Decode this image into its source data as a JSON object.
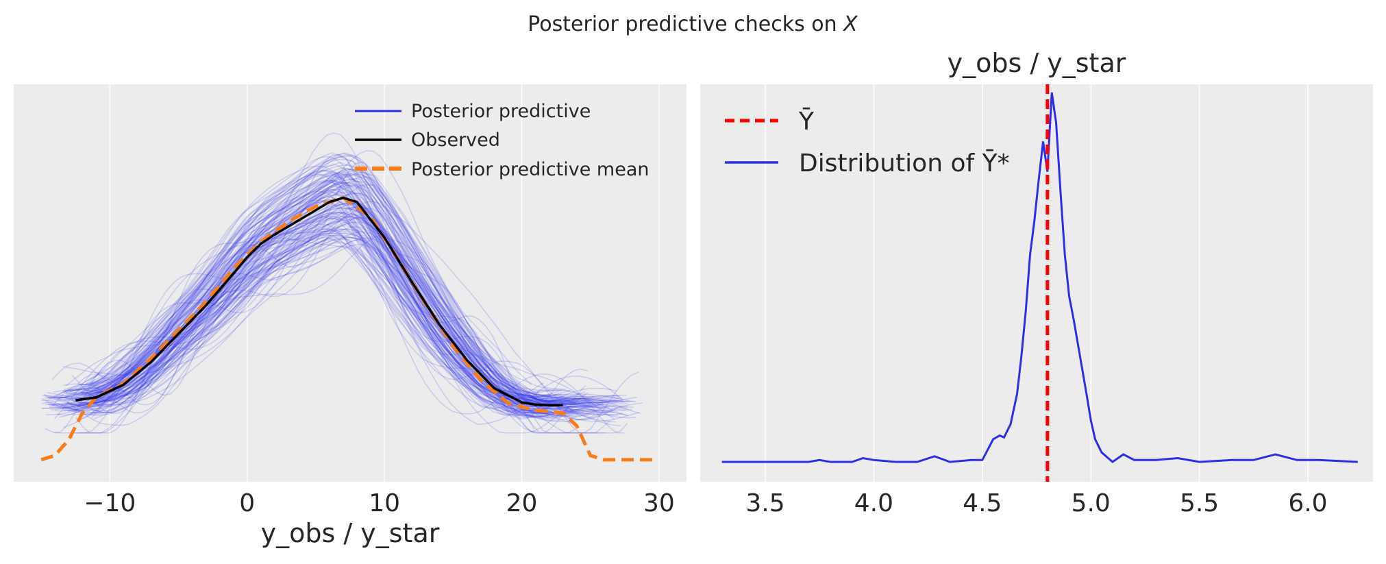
{
  "figure": {
    "suptitle_prefix": "Posterior predictive checks on ",
    "suptitle_var": "X"
  },
  "colors": {
    "background": "#ececec",
    "grid": "#ffffff",
    "posterior_predictive": "#2a2eec",
    "observed": "#000000",
    "pp_mean": "#fa7c17",
    "ybar": "#ff0000",
    "distribution": "#2a2eec"
  },
  "chart_data": [
    {
      "type": "line",
      "title": "",
      "xlabel": "y_obs / y_star",
      "ylabel": "",
      "xlim": [
        -17,
        32
      ],
      "ylim": [
        0,
        0.06
      ],
      "xticks": [
        -10,
        0,
        10,
        20,
        30
      ],
      "xtick_labels": [
        "−10",
        "0",
        "10",
        "20",
        "30"
      ],
      "grid": "vertical",
      "legend": {
        "placement": "upper-right",
        "entries": [
          "Posterior predictive",
          "Observed",
          "Posterior predictive mean"
        ]
      },
      "series": [
        {
          "name": "Observed",
          "x": [
            -12.5,
            -11,
            -9,
            -7,
            -5,
            -3,
            -1,
            0,
            1,
            2,
            4,
            6,
            7,
            8,
            10,
            12,
            14,
            16,
            18,
            20,
            21,
            22,
            23
          ],
          "y": [
            0.0086,
            0.009,
            0.0108,
            0.014,
            0.018,
            0.022,
            0.0265,
            0.0288,
            0.0307,
            0.032,
            0.0343,
            0.0366,
            0.0372,
            0.0366,
            0.0316,
            0.0253,
            0.0193,
            0.0143,
            0.0103,
            0.0083,
            0.008,
            0.0079,
            0.0079
          ]
        },
        {
          "name": "Posterior predictive mean",
          "x": [
            -15,
            -14,
            -13,
            -12,
            -11,
            -9,
            -7,
            -5,
            -3,
            -1,
            1,
            3,
            5,
            7,
            9,
            11,
            13,
            15,
            17,
            19,
            21,
            22,
            23,
            24,
            25,
            26,
            29.5
          ],
          "y": [
            0.0002,
            0.0008,
            0.003,
            0.0068,
            0.009,
            0.011,
            0.0145,
            0.0185,
            0.0225,
            0.0272,
            0.031,
            0.0338,
            0.036,
            0.0372,
            0.0345,
            0.0285,
            0.0222,
            0.0163,
            0.0115,
            0.0082,
            0.0072,
            0.007,
            0.0068,
            0.005,
            0.0008,
            0.0002,
            0.0002
          ]
        }
      ]
    },
    {
      "type": "line",
      "title": "y_obs / y_star",
      "xlabel": "",
      "ylabel": "",
      "xlim": [
        3.2,
        6.3
      ],
      "ylim": [
        0,
        1.0
      ],
      "xticks": [
        3.5,
        4.0,
        4.5,
        5.0,
        5.5,
        6.0
      ],
      "xtick_labels": [
        "3.5",
        "4.0",
        "4.5",
        "5.0",
        "5.5",
        "6.0"
      ],
      "grid": "vertical",
      "legend": {
        "placement": "upper-left",
        "entries": [
          "Ȳ",
          "Distribution of Ȳ*"
        ]
      },
      "ybar_value": 4.8,
      "series": [
        {
          "name": "Distribution of Ȳ*",
          "x": [
            3.3,
            3.5,
            3.7,
            3.75,
            3.8,
            3.9,
            3.95,
            4.0,
            4.1,
            4.2,
            4.28,
            4.35,
            4.45,
            4.5,
            4.55,
            4.58,
            4.6,
            4.63,
            4.66,
            4.68,
            4.7,
            4.72,
            4.74,
            4.76,
            4.78,
            4.8,
            4.82,
            4.84,
            4.86,
            4.88,
            4.9,
            4.92,
            4.95,
            4.98,
            5.0,
            5.02,
            5.05,
            5.1,
            5.15,
            5.2,
            5.3,
            5.4,
            5.5,
            5.65,
            5.75,
            5.85,
            5.95,
            6.05,
            6.23
          ],
          "y": [
            0.0,
            0.0,
            0.0,
            0.005,
            0.0,
            0.0,
            0.01,
            0.005,
            0.0,
            0.0,
            0.015,
            0.0,
            0.005,
            0.005,
            0.06,
            0.07,
            0.065,
            0.1,
            0.18,
            0.28,
            0.4,
            0.55,
            0.64,
            0.75,
            0.85,
            0.77,
            0.98,
            0.9,
            0.72,
            0.55,
            0.44,
            0.38,
            0.28,
            0.18,
            0.11,
            0.06,
            0.025,
            0.0,
            0.02,
            0.005,
            0.005,
            0.01,
            0.0,
            0.005,
            0.005,
            0.02,
            0.005,
            0.005,
            0.0
          ]
        }
      ]
    }
  ]
}
